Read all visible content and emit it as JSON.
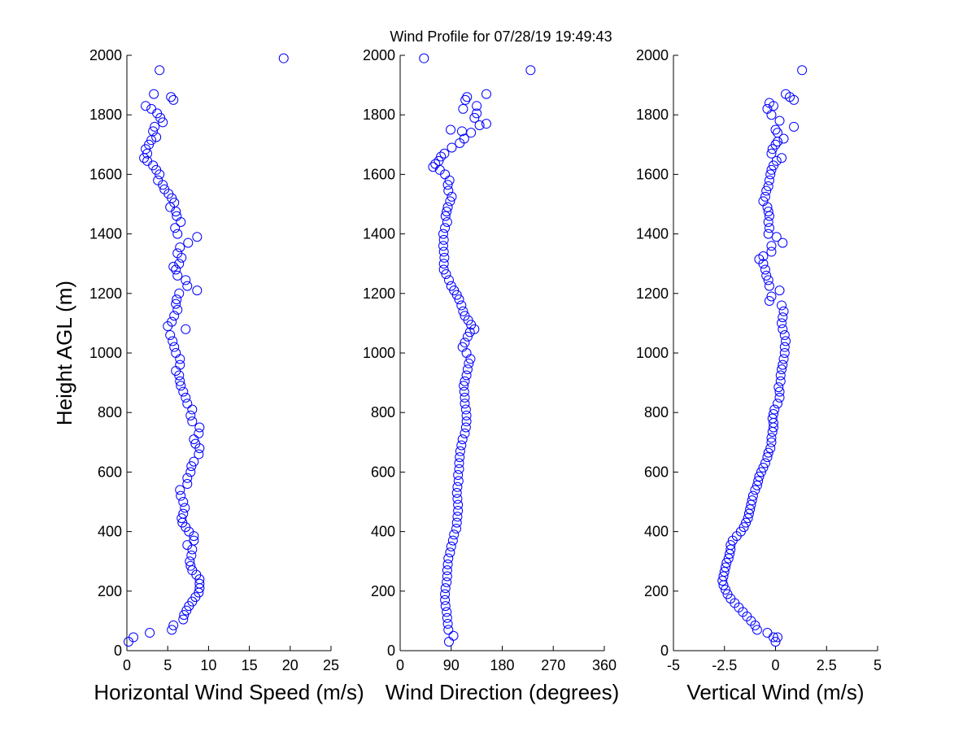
{
  "title": "Wind Profile for  07/28/19 19:49:43",
  "colors": {
    "marker": "#0000ff",
    "axis": "#000000",
    "background": "#ffffff"
  },
  "chart_data": [
    {
      "type": "scatter",
      "xlabel": "Horizontal Wind Speed (m/s)",
      "ylabel": "Height AGL (m)",
      "xlim": [
        0,
        25
      ],
      "ylim": [
        0,
        2000
      ],
      "xticks": [
        "0",
        "5",
        "10",
        "15",
        "20",
        "25"
      ],
      "yticks": [
        "0",
        "200",
        "400",
        "600",
        "800",
        "1000",
        "1200",
        "1400",
        "1600",
        "1800",
        "2000"
      ],
      "grid": false,
      "points": [
        [
          0.2,
          30
        ],
        [
          0.8,
          45
        ],
        [
          2.8,
          60
        ],
        [
          5.5,
          70
        ],
        [
          5.7,
          85
        ],
        [
          6.9,
          105
        ],
        [
          7.0,
          120
        ],
        [
          7.3,
          135
        ],
        [
          7.6,
          150
        ],
        [
          8.0,
          165
        ],
        [
          8.4,
          180
        ],
        [
          8.8,
          195
        ],
        [
          8.9,
          210
        ],
        [
          8.9,
          225
        ],
        [
          8.9,
          240
        ],
        [
          8.5,
          255
        ],
        [
          8.0,
          270
        ],
        [
          7.8,
          285
        ],
        [
          7.7,
          300
        ],
        [
          7.9,
          320
        ],
        [
          8.0,
          340
        ],
        [
          7.4,
          355
        ],
        [
          8.2,
          370
        ],
        [
          8.2,
          385
        ],
        [
          7.6,
          400
        ],
        [
          7.2,
          415
        ],
        [
          6.8,
          430
        ],
        [
          6.7,
          445
        ],
        [
          6.9,
          460
        ],
        [
          7.1,
          480
        ],
        [
          6.9,
          500
        ],
        [
          6.6,
          520
        ],
        [
          6.5,
          540
        ],
        [
          7.4,
          560
        ],
        [
          7.4,
          580
        ],
        [
          7.8,
          600
        ],
        [
          7.9,
          620
        ],
        [
          8.2,
          635
        ],
        [
          8.8,
          660
        ],
        [
          8.9,
          680
        ],
        [
          8.4,
          695
        ],
        [
          8.2,
          710
        ],
        [
          8.8,
          730
        ],
        [
          8.9,
          750
        ],
        [
          8.0,
          770
        ],
        [
          7.8,
          790
        ],
        [
          8.0,
          810
        ],
        [
          7.4,
          830
        ],
        [
          7.2,
          850
        ],
        [
          6.9,
          870
        ],
        [
          6.6,
          890
        ],
        [
          6.5,
          905
        ],
        [
          6.4,
          925
        ],
        [
          6.0,
          940
        ],
        [
          6.5,
          960
        ],
        [
          6.5,
          980
        ],
        [
          6.0,
          1000
        ],
        [
          5.8,
          1020
        ],
        [
          5.6,
          1040
        ],
        [
          5.3,
          1060
        ],
        [
          7.2,
          1080
        ],
        [
          5.0,
          1090
        ],
        [
          5.5,
          1105
        ],
        [
          5.8,
          1125
        ],
        [
          6.2,
          1145
        ],
        [
          6.0,
          1165
        ],
        [
          6.1,
          1180
        ],
        [
          6.4,
          1200
        ],
        [
          8.6,
          1210
        ],
        [
          7.4,
          1225
        ],
        [
          7.2,
          1245
        ],
        [
          6.2,
          1260
        ],
        [
          6.0,
          1280
        ],
        [
          5.7,
          1290
        ],
        [
          6.4,
          1300
        ],
        [
          6.7,
          1320
        ],
        [
          6.2,
          1335
        ],
        [
          6.5,
          1355
        ],
        [
          7.5,
          1370
        ],
        [
          8.6,
          1390
        ],
        [
          6.2,
          1400
        ],
        [
          5.9,
          1420
        ],
        [
          6.6,
          1440
        ],
        [
          6.1,
          1460
        ],
        [
          6.0,
          1475
        ],
        [
          5.3,
          1490
        ],
        [
          5.8,
          1505
        ],
        [
          5.5,
          1520
        ],
        [
          5.1,
          1535
        ],
        [
          4.6,
          1550
        ],
        [
          4.4,
          1565
        ],
        [
          3.8,
          1580
        ],
        [
          4.0,
          1600
        ],
        [
          3.6,
          1615
        ],
        [
          3.2,
          1630
        ],
        [
          2.5,
          1645
        ],
        [
          2.1,
          1655
        ],
        [
          2.5,
          1670
        ],
        [
          2.3,
          1685
        ],
        [
          2.7,
          1700
        ],
        [
          3.0,
          1715
        ],
        [
          3.6,
          1725
        ],
        [
          3.2,
          1745
        ],
        [
          3.4,
          1760
        ],
        [
          4.4,
          1775
        ],
        [
          4.1,
          1790
        ],
        [
          3.7,
          1805
        ],
        [
          3.0,
          1820
        ],
        [
          2.3,
          1830
        ],
        [
          5.7,
          1850
        ],
        [
          5.4,
          1860
        ],
        [
          3.3,
          1870
        ],
        [
          4.0,
          1950
        ],
        [
          19.2,
          1990
        ]
      ]
    },
    {
      "type": "scatter",
      "xlabel": "Wind Direction (degrees)",
      "ylabel": "",
      "xlim": [
        0,
        360
      ],
      "ylim": [
        0,
        2000
      ],
      "xticks": [
        "0",
        "90",
        "180",
        "270",
        "360"
      ],
      "yticks": [
        "0",
        "200",
        "400",
        "600",
        "800",
        "1000",
        "1200",
        "1400",
        "1600",
        "1800",
        "2000"
      ],
      "grid": false,
      "points": [
        [
          86,
          30
        ],
        [
          94,
          50
        ],
        [
          85,
          70
        ],
        [
          84,
          90
        ],
        [
          83,
          110
        ],
        [
          82,
          130
        ],
        [
          80,
          150
        ],
        [
          79,
          170
        ],
        [
          79,
          190
        ],
        [
          80,
          210
        ],
        [
          82,
          230
        ],
        [
          83,
          250
        ],
        [
          83,
          270
        ],
        [
          84,
          290
        ],
        [
          85,
          310
        ],
        [
          88,
          330
        ],
        [
          90,
          350
        ],
        [
          93,
          370
        ],
        [
          95,
          390
        ],
        [
          99,
          410
        ],
        [
          100,
          430
        ],
        [
          101,
          450
        ],
        [
          102,
          470
        ],
        [
          102,
          490
        ],
        [
          101,
          510
        ],
        [
          100,
          530
        ],
        [
          101,
          550
        ],
        [
          103,
          570
        ],
        [
          102,
          590
        ],
        [
          104,
          610
        ],
        [
          104,
          630
        ],
        [
          105,
          650
        ],
        [
          106,
          670
        ],
        [
          108,
          690
        ],
        [
          110,
          710
        ],
        [
          114,
          730
        ],
        [
          116,
          750
        ],
        [
          117,
          770
        ],
        [
          117,
          790
        ],
        [
          116,
          810
        ],
        [
          114,
          830
        ],
        [
          114,
          850
        ],
        [
          113,
          870
        ],
        [
          112,
          890
        ],
        [
          114,
          905
        ],
        [
          117,
          925
        ],
        [
          119,
          945
        ],
        [
          121,
          965
        ],
        [
          124,
          980
        ],
        [
          117,
          1000
        ],
        [
          110,
          1020
        ],
        [
          114,
          1035
        ],
        [
          119,
          1055
        ],
        [
          123,
          1070
        ],
        [
          131,
          1080
        ],
        [
          125,
          1095
        ],
        [
          120,
          1110
        ],
        [
          114,
          1125
        ],
        [
          111,
          1140
        ],
        [
          108,
          1160
        ],
        [
          104,
          1180
        ],
        [
          100,
          1195
        ],
        [
          95,
          1210
        ],
        [
          90,
          1225
        ],
        [
          86,
          1245
        ],
        [
          81,
          1265
        ],
        [
          77,
          1280
        ],
        [
          77,
          1300
        ],
        [
          78,
          1320
        ],
        [
          77,
          1340
        ],
        [
          76,
          1360
        ],
        [
          77,
          1380
        ],
        [
          76,
          1400
        ],
        [
          79,
          1420
        ],
        [
          83,
          1440
        ],
        [
          80,
          1460
        ],
        [
          82,
          1475
        ],
        [
          84,
          1490
        ],
        [
          88,
          1510
        ],
        [
          91,
          1525
        ],
        [
          85,
          1545
        ],
        [
          84,
          1565
        ],
        [
          87,
          1580
        ],
        [
          79,
          1600
        ],
        [
          70,
          1615
        ],
        [
          58,
          1625
        ],
        [
          62,
          1635
        ],
        [
          68,
          1645
        ],
        [
          72,
          1660
        ],
        [
          78,
          1670
        ],
        [
          91,
          1690
        ],
        [
          105,
          1705
        ],
        [
          113,
          1720
        ],
        [
          125,
          1740
        ],
        [
          109,
          1745
        ],
        [
          89,
          1750
        ],
        [
          140,
          1765
        ],
        [
          152,
          1770
        ],
        [
          131,
          1790
        ],
        [
          135,
          1805
        ],
        [
          111,
          1820
        ],
        [
          135,
          1830
        ],
        [
          115,
          1850
        ],
        [
          118,
          1860
        ],
        [
          152,
          1870
        ],
        [
          230,
          1950
        ],
        [
          42,
          1990
        ]
      ]
    },
    {
      "type": "scatter",
      "xlabel": "Vertical Wind (m/s)",
      "ylabel": "",
      "xlim": [
        -5,
        5
      ],
      "ylim": [
        0,
        2000
      ],
      "xticks": [
        "-5",
        "-2.5",
        "0",
        "2.5",
        "5"
      ],
      "yticks": [
        "0",
        "200",
        "400",
        "600",
        "800",
        "1000",
        "1200",
        "1400",
        "1600",
        "1800",
        "2000"
      ],
      "grid": false,
      "points": [
        [
          0.0,
          30
        ],
        [
          -0.1,
          45
        ],
        [
          0.1,
          45
        ],
        [
          -0.4,
          60
        ],
        [
          -0.9,
          70
        ],
        [
          -1.0,
          85
        ],
        [
          -1.2,
          100
        ],
        [
          -1.4,
          115
        ],
        [
          -1.6,
          130
        ],
        [
          -1.8,
          145
        ],
        [
          -2.0,
          160
        ],
        [
          -2.2,
          175
        ],
        [
          -2.35,
          190
        ],
        [
          -2.45,
          205
        ],
        [
          -2.55,
          220
        ],
        [
          -2.6,
          235
        ],
        [
          -2.55,
          250
        ],
        [
          -2.5,
          265
        ],
        [
          -2.45,
          280
        ],
        [
          -2.4,
          295
        ],
        [
          -2.3,
          310
        ],
        [
          -2.25,
          325
        ],
        [
          -2.2,
          340
        ],
        [
          -2.2,
          355
        ],
        [
          -2.1,
          370
        ],
        [
          -1.9,
          385
        ],
        [
          -1.7,
          400
        ],
        [
          -1.55,
          415
        ],
        [
          -1.45,
          430
        ],
        [
          -1.35,
          445
        ],
        [
          -1.3,
          460
        ],
        [
          -1.25,
          475
        ],
        [
          -1.2,
          490
        ],
        [
          -1.15,
          505
        ],
        [
          -1.1,
          520
        ],
        [
          -1.0,
          540
        ],
        [
          -0.9,
          555
        ],
        [
          -0.85,
          570
        ],
        [
          -0.8,
          585
        ],
        [
          -0.7,
          600
        ],
        [
          -0.6,
          615
        ],
        [
          -0.5,
          630
        ],
        [
          -0.4,
          650
        ],
        [
          -0.35,
          665
        ],
        [
          -0.25,
          680
        ],
        [
          -0.2,
          700
        ],
        [
          -0.2,
          715
        ],
        [
          -0.15,
          735
        ],
        [
          -0.1,
          750
        ],
        [
          -0.1,
          765
        ],
        [
          -0.15,
          780
        ],
        [
          -0.1,
          795
        ],
        [
          -0.05,
          810
        ],
        [
          0.1,
          830
        ],
        [
          0.2,
          850
        ],
        [
          0.2,
          870
        ],
        [
          0.15,
          885
        ],
        [
          0.25,
          905
        ],
        [
          0.25,
          925
        ],
        [
          0.3,
          945
        ],
        [
          0.35,
          960
        ],
        [
          0.4,
          980
        ],
        [
          0.45,
          1000
        ],
        [
          0.45,
          1020
        ],
        [
          0.5,
          1040
        ],
        [
          0.45,
          1060
        ],
        [
          0.35,
          1080
        ],
        [
          0.3,
          1100
        ],
        [
          0.35,
          1120
        ],
        [
          0.4,
          1140
        ],
        [
          0.3,
          1160
        ],
        [
          -0.3,
          1175
        ],
        [
          -0.2,
          1190
        ],
        [
          0.2,
          1210
        ],
        [
          -0.3,
          1225
        ],
        [
          -0.35,
          1245
        ],
        [
          -0.45,
          1260
        ],
        [
          -0.5,
          1280
        ],
        [
          -0.6,
          1300
        ],
        [
          -0.8,
          1315
        ],
        [
          -0.6,
          1325
        ],
        [
          -0.2,
          1340
        ],
        [
          -0.2,
          1360
        ],
        [
          0.35,
          1370
        ],
        [
          0.05,
          1390
        ],
        [
          -0.35,
          1400
        ],
        [
          -0.3,
          1420
        ],
        [
          -0.35,
          1440
        ],
        [
          -0.3,
          1460
        ],
        [
          -0.35,
          1475
        ],
        [
          -0.4,
          1490
        ],
        [
          -0.6,
          1510
        ],
        [
          -0.5,
          1525
        ],
        [
          -0.45,
          1545
        ],
        [
          -0.35,
          1560
        ],
        [
          -0.3,
          1580
        ],
        [
          -0.25,
          1600
        ],
        [
          -0.2,
          1615
        ],
        [
          -0.1,
          1630
        ],
        [
          0.05,
          1645
        ],
        [
          0.3,
          1655
        ],
        [
          -0.2,
          1670
        ],
        [
          -0.15,
          1685
        ],
        [
          0.0,
          1700
        ],
        [
          0.1,
          1710
        ],
        [
          0.4,
          1720
        ],
        [
          0.1,
          1740
        ],
        [
          0.0,
          1750
        ],
        [
          0.9,
          1760
        ],
        [
          0.2,
          1780
        ],
        [
          -0.2,
          1800
        ],
        [
          -0.4,
          1820
        ],
        [
          -0.1,
          1830
        ],
        [
          -0.3,
          1840
        ],
        [
          0.5,
          1870
        ],
        [
          0.7,
          1860
        ],
        [
          0.9,
          1850
        ],
        [
          1.3,
          1950
        ]
      ]
    }
  ]
}
